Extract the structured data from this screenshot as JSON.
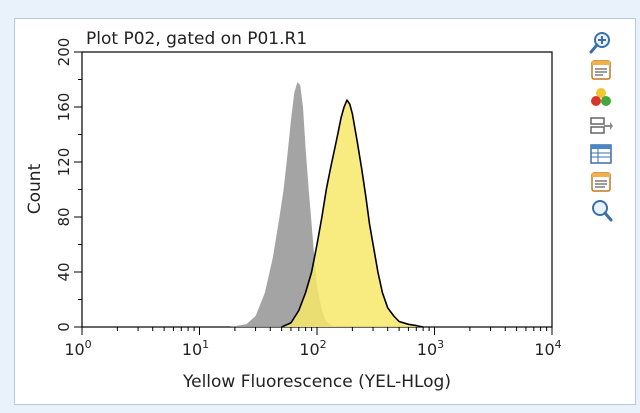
{
  "plot": {
    "title": "Plot P02, gated on P01.R1",
    "xlabel": "Yellow Fluorescence (YEL-HLog)",
    "ylabel": "Count"
  },
  "toolbar": {
    "tools": [
      {
        "icon": "zoom-in-icon"
      },
      {
        "icon": "plot-properties-icon"
      },
      {
        "icon": "color-palette-icon"
      },
      {
        "icon": "add-overlay-icon"
      },
      {
        "icon": "statistics-table-icon"
      },
      {
        "icon": "plot-settings-icon"
      },
      {
        "icon": "zoom-out-icon"
      }
    ]
  },
  "chart_data": {
    "type": "area",
    "title": "Plot P02, gated on P01.R1",
    "xlabel": "Yellow Fluorescence (YEL-HLog)",
    "ylabel": "Count",
    "x_scale": "log",
    "xlim": [
      1,
      10000
    ],
    "ylim": [
      0,
      200
    ],
    "x_ticks": [
      {
        "base": "10",
        "exp": "0"
      },
      {
        "base": "10",
        "exp": "1"
      },
      {
        "base": "10",
        "exp": "2"
      },
      {
        "base": "10",
        "exp": "3"
      },
      {
        "base": "10",
        "exp": "4"
      }
    ],
    "y_ticks": [
      "0",
      "40",
      "80",
      "120",
      "160",
      "200"
    ],
    "y_ticks_minor": [
      20,
      60,
      100,
      140,
      180
    ],
    "series": [
      {
        "color": "#9a9a9a",
        "fill_opacity": 0.9,
        "x": [
          18,
          25,
          30,
          36,
          42,
          48,
          52,
          56,
          60,
          64,
          68,
          72,
          76,
          80,
          85,
          90,
          95,
          100,
          110,
          120,
          135,
          150
        ],
        "y": [
          0,
          2,
          8,
          25,
          50,
          80,
          100,
          125,
          150,
          170,
          178,
          176,
          160,
          130,
          100,
          75,
          50,
          30,
          12,
          4,
          1,
          0
        ]
      },
      {
        "color": "#f7e86a",
        "line_color": "#000000",
        "fill_opacity": 0.85,
        "x": [
          50,
          60,
          70,
          80,
          90,
          100,
          110,
          120,
          130,
          140,
          150,
          160,
          170,
          180,
          190,
          200,
          220,
          240,
          260,
          280,
          300,
          330,
          360,
          400,
          450,
          500,
          600,
          700,
          800
        ],
        "y": [
          0,
          3,
          12,
          25,
          40,
          60,
          80,
          100,
          115,
          128,
          140,
          152,
          160,
          165,
          162,
          155,
          135,
          115,
          95,
          75,
          60,
          40,
          25,
          14,
          8,
          4,
          2,
          1,
          0
        ]
      }
    ]
  }
}
